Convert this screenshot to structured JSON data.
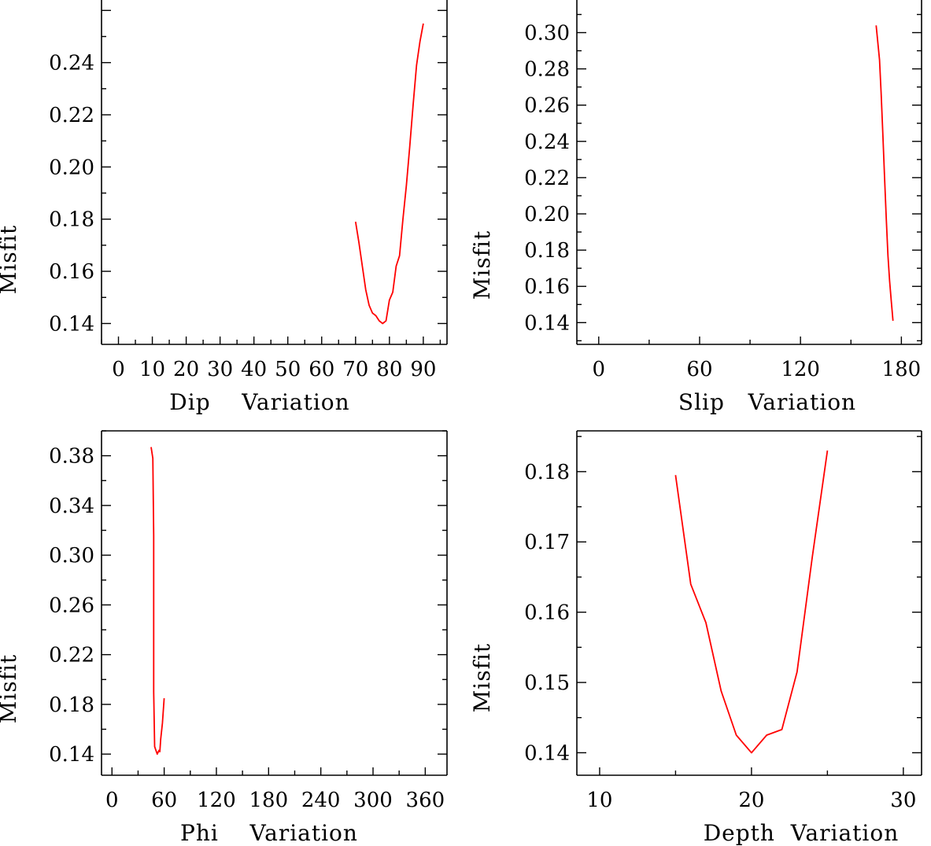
{
  "chart_data": [
    {
      "id": "dip",
      "type": "line",
      "xlabel": "Dip    Variation",
      "ylabel": "Misfit",
      "xlim": [
        -5,
        97
      ],
      "ylim": [
        0.132,
        0.264
      ],
      "xticks": [
        0,
        10,
        20,
        30,
        40,
        50,
        60,
        70,
        80,
        90
      ],
      "xticklabels": [
        "0",
        "10",
        "20",
        "30",
        "40",
        "50",
        "60",
        "70",
        "80",
        "90"
      ],
      "yticks": [
        0.14,
        0.16,
        0.18,
        0.2,
        0.22,
        0.24
      ],
      "yticklabels": [
        "0.14",
        "0.16",
        "0.18",
        "0.20",
        "0.22",
        "0.24"
      ],
      "series": [
        {
          "name": "misfit",
          "color": "#ff0000",
          "x": [
            70,
            71,
            72,
            73,
            74,
            75,
            76,
            77,
            78,
            79,
            80,
            81,
            82,
            83,
            84,
            85,
            86,
            87,
            88,
            89,
            90
          ],
          "y": [
            0.179,
            0.171,
            0.162,
            0.153,
            0.147,
            0.144,
            0.143,
            0.141,
            0.14,
            0.141,
            0.149,
            0.152,
            0.162,
            0.166,
            0.18,
            0.193,
            0.208,
            0.224,
            0.239,
            0.248,
            0.255
          ]
        }
      ]
    },
    {
      "id": "slip",
      "type": "line",
      "xlabel": "Slip   Variation",
      "ylabel": "Misfit",
      "xlim": [
        -13,
        192
      ],
      "ylim": [
        0.128,
        0.318
      ],
      "xticks": [
        0,
        60,
        120,
        180
      ],
      "xticklabels": [
        "0",
        "60",
        "120",
        "180"
      ],
      "yticks": [
        0.14,
        0.16,
        0.18,
        0.2,
        0.22,
        0.24,
        0.26,
        0.28,
        0.3
      ],
      "yticklabels": [
        "0.14",
        "0.16",
        "0.18",
        "0.20",
        "0.22",
        "0.24",
        "0.26",
        "0.28",
        "0.30"
      ],
      "series": [
        {
          "name": "misfit",
          "color": "#ff0000",
          "x": [
            165,
            167,
            168,
            169,
            170,
            171,
            172,
            173,
            174,
            175
          ],
          "y": [
            0.304,
            0.285,
            0.266,
            0.243,
            0.22,
            0.198,
            0.177,
            0.163,
            0.152,
            0.141
          ]
        }
      ]
    },
    {
      "id": "phi",
      "type": "line",
      "xlabel": "Phi    Variation",
      "ylabel": "Misfit",
      "xlim": [
        -12,
        385
      ],
      "ylim": [
        0.123,
        0.4
      ],
      "xticks": [
        0,
        60,
        120,
        180,
        240,
        300,
        360
      ],
      "xticklabels": [
        "0",
        "60",
        "120",
        "180",
        "240",
        "300",
        "360"
      ],
      "yticks": [
        0.14,
        0.18,
        0.22,
        0.26,
        0.3,
        0.34,
        0.38
      ],
      "yticklabels": [
        "0.14",
        "0.18",
        "0.22",
        "0.26",
        "0.30",
        "0.34",
        "0.38"
      ],
      "series": [
        {
          "name": "misfit",
          "color": "#ff0000",
          "x": [
            45,
            47,
            48,
            48,
            49,
            50,
            52,
            54,
            55,
            56,
            58,
            60
          ],
          "y": [
            0.387,
            0.378,
            0.316,
            0.19,
            0.146,
            0.144,
            0.14,
            0.143,
            0.142,
            0.152,
            0.165,
            0.185
          ]
        }
      ]
    },
    {
      "id": "depth",
      "type": "line",
      "xlabel": "Depth  Variation",
      "ylabel": "Misfit",
      "xlim": [
        8.5,
        31.2
      ],
      "ylim": [
        0.1368,
        0.1858
      ],
      "xticks": [
        10,
        20,
        30
      ],
      "xticklabels": [
        "10",
        "20",
        "30"
      ],
      "yticks": [
        0.14,
        0.15,
        0.16,
        0.17,
        0.18
      ],
      "yticklabels": [
        "0.14",
        "0.15",
        "0.16",
        "0.17",
        "0.18"
      ],
      "series": [
        {
          "name": "misfit",
          "color": "#ff0000",
          "x": [
            15,
            16,
            17,
            18,
            19,
            20,
            21,
            22,
            23,
            24,
            25
          ],
          "y": [
            0.1795,
            0.164,
            0.1585,
            0.1488,
            0.1425,
            0.14,
            0.1425,
            0.1433,
            0.1515,
            0.1678,
            0.183
          ]
        }
      ]
    }
  ]
}
